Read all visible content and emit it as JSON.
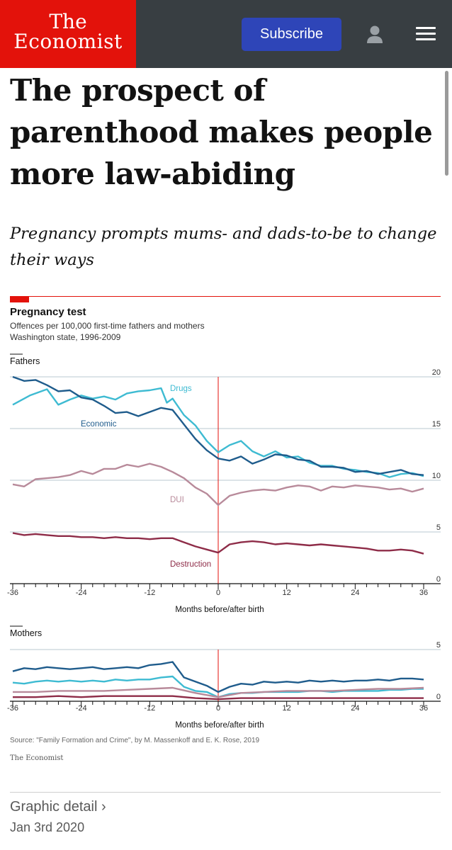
{
  "header": {
    "logo_line1": "The",
    "logo_line2": "Economist",
    "subscribe_label": "Subscribe"
  },
  "article": {
    "headline": "The prospect of parenthood makes people more law-abiding",
    "subheadline": "Pregnancy prompts mums- and dads-to-be to change their ways",
    "section_link": "Graphic detail ›",
    "date": "Jan 3rd 2020"
  },
  "chart": {
    "title": "Pregnancy test",
    "subtitle": "Offences per 100,000 first-time fathers and mothers",
    "subtitle2": "Washington state, 1996-2009",
    "source": "Source: \"Family Formation and Crime\", by M. Massenkoff and E. K. Rose, 2019",
    "credit": "The Economist"
  },
  "chart_data": [
    {
      "type": "line",
      "title": "Fathers",
      "xlabel": "Months before/after birth",
      "x_ticks": [
        -36,
        -24,
        -12,
        0,
        12,
        24,
        36
      ],
      "xlim": [
        -36,
        36
      ],
      "ylim": [
        0,
        20
      ],
      "y_ticks": [
        0,
        5,
        10,
        15,
        20
      ],
      "colors": {
        "Drugs": "#3ebbd2",
        "Economic": "#1f5c8c",
        "DUI": "#b88a9a",
        "Destruction": "#8e2c48"
      },
      "series": [
        {
          "name": "Drugs",
          "points": [
            [
              -36,
              17.3
            ],
            [
              -33,
              18.2
            ],
            [
              -30,
              18.8
            ],
            [
              -28,
              17.3
            ],
            [
              -26,
              17.8
            ],
            [
              -24,
              18.2
            ],
            [
              -22,
              17.9
            ],
            [
              -20,
              18.1
            ],
            [
              -18,
              17.8
            ],
            [
              -16,
              18.4
            ],
            [
              -14,
              18.6
            ],
            [
              -12,
              18.7
            ],
            [
              -10,
              18.9
            ],
            [
              -9,
              17.5
            ],
            [
              -8,
              17.9
            ],
            [
              -6,
              16.3
            ],
            [
              -4,
              15.3
            ],
            [
              -2,
              13.8
            ],
            [
              0,
              12.7
            ],
            [
              2,
              13.4
            ],
            [
              4,
              13.8
            ],
            [
              6,
              12.8
            ],
            [
              8,
              12.3
            ],
            [
              10,
              12.8
            ],
            [
              12,
              12.2
            ],
            [
              14,
              12.3
            ],
            [
              16,
              11.7
            ],
            [
              18,
              11.4
            ],
            [
              20,
              11.4
            ],
            [
              22,
              11.1
            ],
            [
              24,
              11.0
            ],
            [
              26,
              10.8
            ],
            [
              28,
              10.7
            ],
            [
              30,
              10.3
            ],
            [
              32,
              10.6
            ],
            [
              34,
              10.7
            ],
            [
              36,
              10.4
            ]
          ]
        },
        {
          "name": "Economic",
          "points": [
            [
              -36,
              20.0
            ],
            [
              -34,
              19.6
            ],
            [
              -32,
              19.7
            ],
            [
              -30,
              19.2
            ],
            [
              -28,
              18.6
            ],
            [
              -26,
              18.7
            ],
            [
              -24,
              18.0
            ],
            [
              -22,
              17.8
            ],
            [
              -20,
              17.2
            ],
            [
              -18,
              16.5
            ],
            [
              -16,
              16.6
            ],
            [
              -14,
              16.2
            ],
            [
              -12,
              16.6
            ],
            [
              -10,
              17.0
            ],
            [
              -8,
              16.8
            ],
            [
              -6,
              15.4
            ],
            [
              -4,
              14.0
            ],
            [
              -2,
              12.9
            ],
            [
              0,
              12.1
            ],
            [
              2,
              11.9
            ],
            [
              4,
              12.3
            ],
            [
              6,
              11.6
            ],
            [
              8,
              12.0
            ],
            [
              10,
              12.5
            ],
            [
              12,
              12.4
            ],
            [
              14,
              12.0
            ],
            [
              16,
              11.9
            ],
            [
              18,
              11.3
            ],
            [
              20,
              11.3
            ],
            [
              22,
              11.2
            ],
            [
              24,
              10.8
            ],
            [
              26,
              10.9
            ],
            [
              28,
              10.6
            ],
            [
              30,
              10.8
            ],
            [
              32,
              11.0
            ],
            [
              34,
              10.6
            ],
            [
              36,
              10.5
            ]
          ]
        },
        {
          "name": "DUI",
          "points": [
            [
              -36,
              9.6
            ],
            [
              -34,
              9.4
            ],
            [
              -32,
              10.1
            ],
            [
              -30,
              10.2
            ],
            [
              -28,
              10.3
            ],
            [
              -26,
              10.5
            ],
            [
              -24,
              10.9
            ],
            [
              -22,
              10.6
            ],
            [
              -20,
              11.1
            ],
            [
              -18,
              11.1
            ],
            [
              -16,
              11.5
            ],
            [
              -14,
              11.3
            ],
            [
              -12,
              11.6
            ],
            [
              -10,
              11.3
            ],
            [
              -8,
              10.8
            ],
            [
              -6,
              10.2
            ],
            [
              -4,
              9.3
            ],
            [
              -2,
              8.7
            ],
            [
              0,
              7.6
            ],
            [
              2,
              8.5
            ],
            [
              4,
              8.8
            ],
            [
              6,
              9.0
            ],
            [
              8,
              9.1
            ],
            [
              10,
              9.0
            ],
            [
              12,
              9.3
            ],
            [
              14,
              9.5
            ],
            [
              16,
              9.4
            ],
            [
              18,
              9.0
            ],
            [
              20,
              9.4
            ],
            [
              22,
              9.3
            ],
            [
              24,
              9.5
            ],
            [
              26,
              9.4
            ],
            [
              28,
              9.3
            ],
            [
              30,
              9.1
            ],
            [
              32,
              9.2
            ],
            [
              34,
              8.9
            ],
            [
              36,
              9.2
            ]
          ]
        },
        {
          "name": "Destruction",
          "points": [
            [
              -36,
              4.9
            ],
            [
              -34,
              4.7
            ],
            [
              -32,
              4.8
            ],
            [
              -30,
              4.7
            ],
            [
              -28,
              4.6
            ],
            [
              -26,
              4.6
            ],
            [
              -24,
              4.5
            ],
            [
              -22,
              4.5
            ],
            [
              -20,
              4.4
            ],
            [
              -18,
              4.5
            ],
            [
              -16,
              4.4
            ],
            [
              -14,
              4.4
            ],
            [
              -12,
              4.3
            ],
            [
              -10,
              4.4
            ],
            [
              -8,
              4.4
            ],
            [
              -6,
              4.0
            ],
            [
              -4,
              3.6
            ],
            [
              -2,
              3.3
            ],
            [
              0,
              3.0
            ],
            [
              2,
              3.8
            ],
            [
              4,
              4.0
            ],
            [
              6,
              4.1
            ],
            [
              8,
              4.0
            ],
            [
              10,
              3.8
            ],
            [
              12,
              3.9
            ],
            [
              14,
              3.8
            ],
            [
              16,
              3.7
            ],
            [
              18,
              3.8
            ],
            [
              20,
              3.7
            ],
            [
              22,
              3.6
            ],
            [
              24,
              3.5
            ],
            [
              26,
              3.4
            ],
            [
              28,
              3.2
            ],
            [
              30,
              3.2
            ],
            [
              32,
              3.3
            ],
            [
              34,
              3.2
            ],
            [
              36,
              2.9
            ]
          ]
        }
      ]
    },
    {
      "type": "line",
      "title": "Mothers",
      "xlabel": "Months before/after birth",
      "x_ticks": [
        -36,
        -24,
        -12,
        0,
        12,
        24,
        36
      ],
      "xlim": [
        -36,
        36
      ],
      "ylim": [
        0,
        5
      ],
      "y_ticks": [
        0,
        5
      ],
      "colors": {
        "Drugs": "#3ebbd2",
        "Economic": "#1f5c8c",
        "DUI": "#b88a9a",
        "Destruction": "#8e2c48"
      },
      "series": [
        {
          "name": "Economic",
          "points": [
            [
              -36,
              2.9
            ],
            [
              -34,
              3.2
            ],
            [
              -32,
              3.1
            ],
            [
              -30,
              3.3
            ],
            [
              -28,
              3.2
            ],
            [
              -26,
              3.1
            ],
            [
              -24,
              3.2
            ],
            [
              -22,
              3.3
            ],
            [
              -20,
              3.1
            ],
            [
              -18,
              3.2
            ],
            [
              -16,
              3.3
            ],
            [
              -14,
              3.2
            ],
            [
              -12,
              3.5
            ],
            [
              -10,
              3.6
            ],
            [
              -8,
              3.8
            ],
            [
              -6,
              2.3
            ],
            [
              -4,
              1.9
            ],
            [
              -2,
              1.5
            ],
            [
              0,
              0.9
            ],
            [
              2,
              1.4
            ],
            [
              4,
              1.7
            ],
            [
              6,
              1.6
            ],
            [
              8,
              1.9
            ],
            [
              10,
              1.8
            ],
            [
              12,
              1.9
            ],
            [
              14,
              1.8
            ],
            [
              16,
              2.0
            ],
            [
              18,
              1.9
            ],
            [
              20,
              2.0
            ],
            [
              22,
              1.9
            ],
            [
              24,
              2.0
            ],
            [
              26,
              2.0
            ],
            [
              28,
              2.1
            ],
            [
              30,
              2.0
            ],
            [
              32,
              2.2
            ],
            [
              34,
              2.2
            ],
            [
              36,
              2.1
            ]
          ]
        },
        {
          "name": "Drugs",
          "points": [
            [
              -36,
              1.8
            ],
            [
              -34,
              1.7
            ],
            [
              -32,
              1.9
            ],
            [
              -30,
              2.0
            ],
            [
              -28,
              1.9
            ],
            [
              -26,
              2.0
            ],
            [
              -24,
              1.9
            ],
            [
              -22,
              2.0
            ],
            [
              -20,
              1.9
            ],
            [
              -18,
              2.1
            ],
            [
              -16,
              2.0
            ],
            [
              -14,
              2.1
            ],
            [
              -12,
              2.1
            ],
            [
              -10,
              2.3
            ],
            [
              -8,
              2.4
            ],
            [
              -6,
              1.4
            ],
            [
              -4,
              1.0
            ],
            [
              -2,
              0.9
            ],
            [
              0,
              0.4
            ],
            [
              2,
              0.7
            ],
            [
              4,
              0.8
            ],
            [
              6,
              0.8
            ],
            [
              8,
              0.9
            ],
            [
              10,
              0.9
            ],
            [
              12,
              0.9
            ],
            [
              14,
              0.9
            ],
            [
              16,
              1.0
            ],
            [
              18,
              1.0
            ],
            [
              20,
              0.9
            ],
            [
              22,
              1.0
            ],
            [
              24,
              1.0
            ],
            [
              26,
              1.0
            ],
            [
              28,
              1.0
            ],
            [
              30,
              1.1
            ],
            [
              32,
              1.1
            ],
            [
              34,
              1.2
            ],
            [
              36,
              1.2
            ]
          ]
        },
        {
          "name": "DUI",
          "points": [
            [
              -36,
              0.9
            ],
            [
              -32,
              0.9
            ],
            [
              -28,
              1.0
            ],
            [
              -24,
              1.0
            ],
            [
              -20,
              1.0
            ],
            [
              -16,
              1.1
            ],
            [
              -12,
              1.2
            ],
            [
              -8,
              1.3
            ],
            [
              -4,
              0.8
            ],
            [
              0,
              0.4
            ],
            [
              4,
              0.8
            ],
            [
              8,
              0.9
            ],
            [
              12,
              1.0
            ],
            [
              16,
              1.0
            ],
            [
              20,
              1.0
            ],
            [
              24,
              1.1
            ],
            [
              28,
              1.2
            ],
            [
              32,
              1.2
            ],
            [
              36,
              1.3
            ]
          ]
        },
        {
          "name": "Destruction",
          "points": [
            [
              -36,
              0.4
            ],
            [
              -32,
              0.4
            ],
            [
              -28,
              0.5
            ],
            [
              -24,
              0.4
            ],
            [
              -20,
              0.5
            ],
            [
              -16,
              0.5
            ],
            [
              -12,
              0.5
            ],
            [
              -8,
              0.5
            ],
            [
              -4,
              0.3
            ],
            [
              0,
              0.2
            ],
            [
              4,
              0.3
            ],
            [
              8,
              0.3
            ],
            [
              12,
              0.3
            ],
            [
              16,
              0.3
            ],
            [
              20,
              0.3
            ],
            [
              24,
              0.3
            ],
            [
              28,
              0.3
            ],
            [
              32,
              0.3
            ],
            [
              36,
              0.3
            ]
          ]
        }
      ]
    }
  ]
}
